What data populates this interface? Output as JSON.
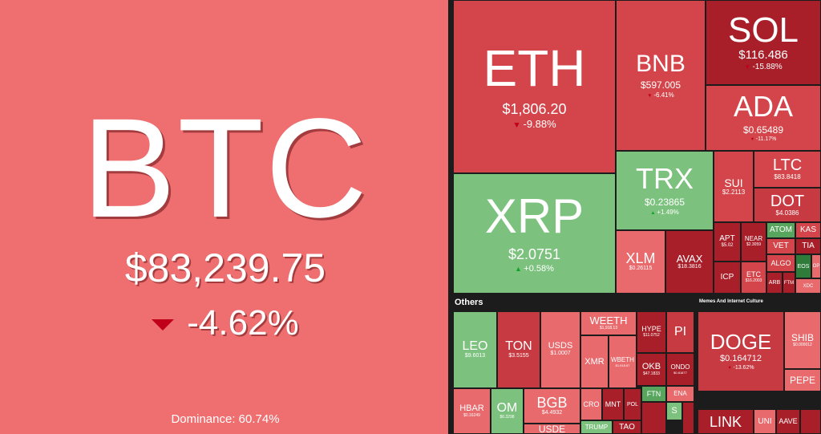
{
  "btc": {
    "symbol": "BTC",
    "price": "$83,239.75",
    "change": "-4.62%",
    "dominance": "Dominance: 60.74%"
  },
  "tiles": {
    "eth": {
      "symbol": "ETH",
      "price": "$1,806.20",
      "change": "-9.88%"
    },
    "bnb": {
      "symbol": "BNB",
      "price": "$597.005",
      "change": "-6.41%"
    },
    "sol": {
      "symbol": "SOL",
      "price": "$116.486",
      "change": "-15.88%"
    },
    "ada": {
      "symbol": "ADA",
      "price": "$0.65489",
      "change": "-11.17%"
    },
    "xrp": {
      "symbol": "XRP",
      "price": "$2.0751",
      "change": "+0.58%"
    },
    "trx": {
      "symbol": "TRX",
      "price": "$0.23865",
      "change": "+1.49%"
    },
    "ltc": {
      "symbol": "LTC",
      "price": "$83.8418"
    },
    "dot": {
      "symbol": "DOT",
      "price": "$4.0386"
    },
    "sui": {
      "symbol": "SUI",
      "price": "$2.2113"
    },
    "xlm": {
      "symbol": "XLM",
      "price": "$0.26115"
    },
    "avax": {
      "symbol": "AVAX",
      "price": "$18.3816"
    },
    "apt": {
      "symbol": "APT",
      "price": "$5.02"
    },
    "near": {
      "symbol": "NEAR",
      "price": "$2.3059"
    },
    "icp": {
      "symbol": "ICP"
    },
    "etc": {
      "symbol": "ETC",
      "price": "$16.2003"
    },
    "atom": {
      "symbol": "ATOM"
    },
    "kas": {
      "symbol": "KAS"
    },
    "vet": {
      "symbol": "VET"
    },
    "tia": {
      "symbol": "TIA"
    },
    "algo": {
      "symbol": "ALGO"
    },
    "eos": {
      "symbol": "EOS"
    },
    "arb": {
      "symbol": "ARB"
    },
    "ftm": {
      "symbol": "FTM"
    },
    "xdc": {
      "symbol": "XDC"
    },
    "op": {
      "symbol": "OP"
    },
    "leo": {
      "symbol": "LEO",
      "price": "$9.6013"
    },
    "ton": {
      "symbol": "TON",
      "price": "$3.5155"
    },
    "usds": {
      "symbol": "USDS",
      "price": "$1.0007"
    },
    "weeth": {
      "symbol": "WEETH",
      "price": "$1,918.13"
    },
    "xmr": {
      "symbol": "XMR"
    },
    "wbeth": {
      "symbol": "WBETH",
      "price": "$1,918.67"
    },
    "hype": {
      "symbol": "HYPE",
      "price": "$11.0752"
    },
    "pi": {
      "symbol": "PI"
    },
    "okb": {
      "symbol": "OKB",
      "price": "$47.1833"
    },
    "ondo": {
      "symbol": "ONDO",
      "price": "$0.81877"
    },
    "hbar": {
      "symbol": "HBAR",
      "price": "$0.16249"
    },
    "om": {
      "symbol": "OM",
      "price": "$6.3298"
    },
    "bgb": {
      "symbol": "BGB",
      "price": "$4.4932"
    },
    "usde": {
      "symbol": "USDE"
    },
    "cro": {
      "symbol": "CRO"
    },
    "mnt": {
      "symbol": "MNT"
    },
    "pol": {
      "symbol": "POL"
    },
    "ftn": {
      "symbol": "FTN"
    },
    "ena": {
      "symbol": "ENA"
    },
    "s": {
      "symbol": "S"
    },
    "trump": {
      "symbol": "TRUMP"
    },
    "tao": {
      "symbol": "TAO"
    },
    "doge": {
      "symbol": "DOGE",
      "price": "$0.164712",
      "change": "-13.62%"
    },
    "shib": {
      "symbol": "SHIB",
      "price": "$0.000012"
    },
    "pepe": {
      "symbol": "PEPE"
    },
    "link": {
      "symbol": "LINK"
    },
    "uni": {
      "symbol": "UNI"
    },
    "aave": {
      "symbol": "AAVE"
    }
  },
  "sections": {
    "others": "Others",
    "memes": "Memes And Internet Culture"
  }
}
